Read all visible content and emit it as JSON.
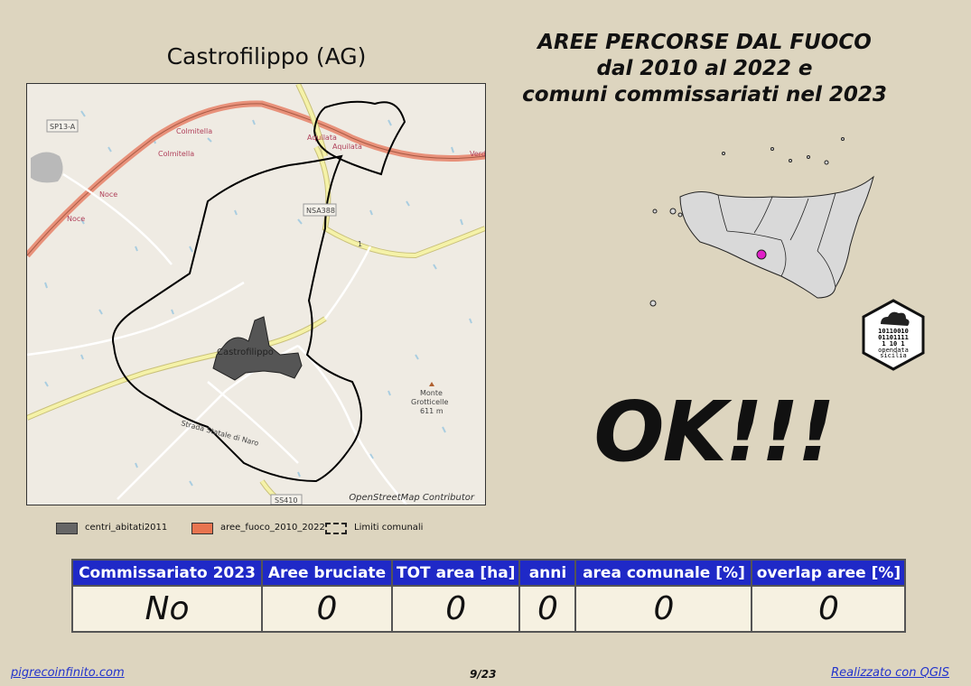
{
  "map_title": "Castrofilippo (AG)",
  "main_title": {
    "line1": "AREE PERCORSE DAL FUOCO",
    "line2": "dal 2010 al 2022 e",
    "line3": "comuni commissariati nel 2023"
  },
  "map": {
    "attribution": "OpenStreetMap Contributor",
    "labels": {
      "sp13a": "SP13-A",
      "colmitella1": "Colmitella",
      "colmitella2": "Colmitella",
      "noce1": "Noce",
      "noce2": "Noce",
      "aquilata1": "Aquilata",
      "aquilata2": "Aquilata",
      "verde": "Verd",
      "nsa388": "NSA388",
      "road1": "1",
      "town": "Castrofilippo",
      "monte1": "Monte",
      "monte2": "Grotticelle",
      "monte3": "611 m",
      "strada": "Strada Statale di Naro",
      "ss410": "SS410"
    },
    "colors": {
      "background": "#efebe3",
      "motorway": "#e8917a",
      "trunk": "#f5f2a8",
      "boundary": "#000000",
      "town_fill": "#555555",
      "water": "#a9cde0"
    }
  },
  "legend": {
    "centri": "centri_abitati2011",
    "aree": "aree_fuoco_2010_2022",
    "limiti": "Limiti comunali",
    "aree_color": "#e8744f"
  },
  "inset": {
    "logo_lines": [
      "10110010",
      "01101111",
      "1 10 1",
      "opendata",
      "sicilia"
    ],
    "marker_color": "#e020c8"
  },
  "status": "OK!!!",
  "table": {
    "headers": [
      "Commissariato 2023",
      "Aree bruciate",
      "TOT area [ha]",
      "anni",
      "area comunale [%]",
      "overlap aree [%]"
    ],
    "values": [
      "No",
      "0",
      "0",
      "0",
      "0",
      "0"
    ],
    "header_color": "#1f29c7"
  },
  "footer": {
    "left": "pigrecoinfinito.com",
    "center": "9/23",
    "right": "Realizzato con QGIS"
  }
}
